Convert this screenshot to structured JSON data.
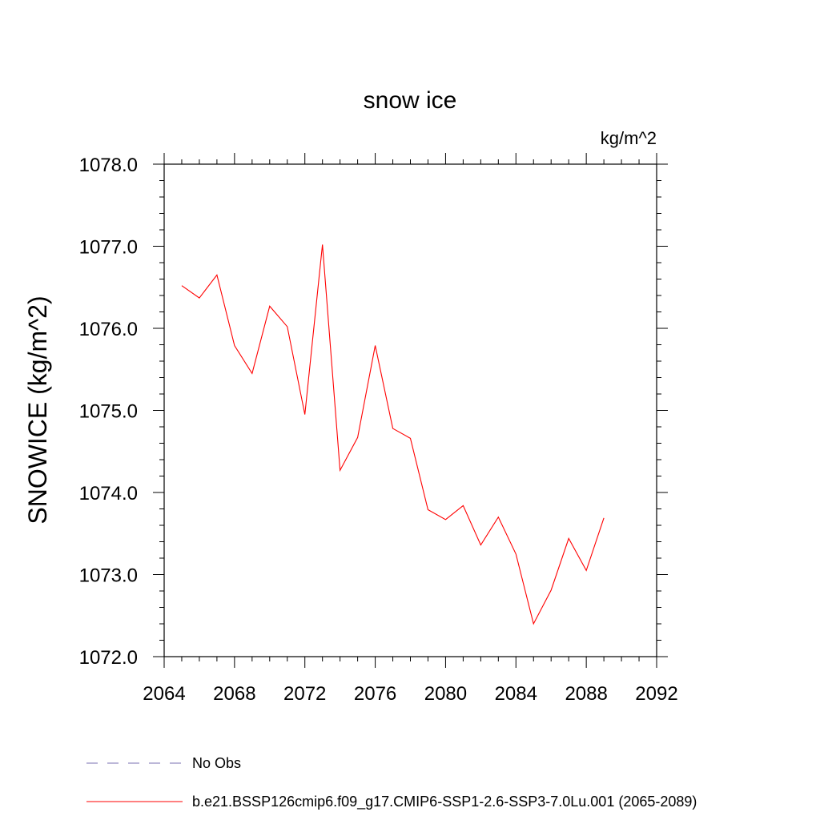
{
  "chart_data": {
    "type": "line",
    "title": "snow ice",
    "units": "kg/m^2",
    "ylabel": "SNOWICE  (kg/m^2)",
    "xlabel": "",
    "xlim": [
      2064,
      2092
    ],
    "ylim": [
      1072.0,
      1078.0
    ],
    "xticks": [
      2064,
      2068,
      2072,
      2076,
      2080,
      2084,
      2088,
      2092
    ],
    "yticks": [
      "1072.0",
      "1073.0",
      "1074.0",
      "1075.0",
      "1076.0",
      "1077.0",
      "1078.0"
    ],
    "x_minor_step": 1,
    "y_minor_step": 0.2,
    "grid": false,
    "legend_position": "bottom",
    "series": [
      {
        "name": "No Obs",
        "color": "#7a6fb0",
        "style": "dashed",
        "x": [],
        "y": []
      },
      {
        "name": "b.e21.BSSP126cmip6.f09_g17.CMIP6-SSP1-2.6-SSP3-7.0Lu.001 (2065-2089)",
        "color": "#ff0000",
        "style": "solid",
        "x": [
          2065,
          2066,
          2067,
          2068,
          2069,
          2070,
          2071,
          2072,
          2073,
          2074,
          2075,
          2076,
          2077,
          2078,
          2079,
          2080,
          2081,
          2082,
          2083,
          2084,
          2085,
          2086,
          2087,
          2088,
          2089
        ],
        "y": [
          1076.52,
          1076.37,
          1076.65,
          1075.79,
          1075.45,
          1076.27,
          1076.02,
          1074.95,
          1077.02,
          1074.27,
          1074.67,
          1075.79,
          1074.78,
          1074.66,
          1073.79,
          1073.67,
          1073.84,
          1073.36,
          1073.7,
          1073.25,
          1072.4,
          1072.81,
          1073.44,
          1073.05,
          1073.69
        ]
      }
    ]
  }
}
